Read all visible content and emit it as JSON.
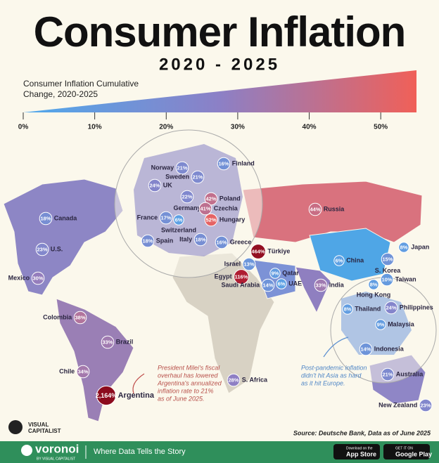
{
  "header": {
    "title": "Consumer Inflation",
    "subtitle": "2020 - 2025"
  },
  "legend": {
    "title_lines": [
      "Consumer Inflation Cumulative",
      "Change, 2020-2025"
    ],
    "lim": [
      0,
      55
    ],
    "ticks": [
      {
        "value": 0,
        "label": "0%"
      },
      {
        "value": 10,
        "label": "10%"
      },
      {
        "value": 20,
        "label": "20%"
      },
      {
        "value": 30,
        "label": "30%"
      },
      {
        "value": 40,
        "label": "40%"
      },
      {
        "value": 50,
        "label": "50%"
      }
    ],
    "colors": [
      "#4fa9ec",
      "#8c80c6",
      "#f06058"
    ]
  },
  "regions": [
    {
      "name": "Finland",
      "value": 16,
      "value_label": "16%"
    },
    {
      "name": "Norway",
      "value": 21,
      "value_label": "21%"
    },
    {
      "name": "Sweden",
      "value": 21,
      "value_label": "21%"
    },
    {
      "name": "UK",
      "value": 24,
      "value_label": "24%"
    },
    {
      "name": "Germany",
      "value": 22,
      "value_label": "22%"
    },
    {
      "name": "Poland",
      "value": 42,
      "value_label": "42%"
    },
    {
      "name": "Czechia",
      "value": 41,
      "value_label": "41%"
    },
    {
      "name": "France",
      "value": 17,
      "value_label": "17%"
    },
    {
      "name": "Hungary",
      "value": 52,
      "value_label": "52%"
    },
    {
      "name": "Switzerland",
      "value": 6,
      "value_label": "6%"
    },
    {
      "name": "Spain",
      "value": 18,
      "value_label": "18%"
    },
    {
      "name": "Italy",
      "value": 18,
      "value_label": "18%"
    },
    {
      "name": "Greece",
      "value": 16,
      "value_label": "16%"
    },
    {
      "name": "Türkiye",
      "value": 464,
      "value_label": "464%"
    },
    {
      "name": "Canada",
      "value": 18,
      "value_label": "18%"
    },
    {
      "name": "U.S.",
      "value": 23,
      "value_label": "23%"
    },
    {
      "name": "Russia",
      "value": 44,
      "value_label": "44%"
    },
    {
      "name": "Japan",
      "value": 8,
      "value_label": "8%"
    },
    {
      "name": "China",
      "value": 6,
      "value_label": "6%"
    },
    {
      "name": "S. Korea",
      "value": 15,
      "value_label": "15%"
    },
    {
      "name": "Taiwan",
      "value": 10,
      "value_label": "10%"
    },
    {
      "name": "Israel",
      "value": 13,
      "value_label": "13%"
    },
    {
      "name": "Qatar",
      "value": 9,
      "value_label": "9%"
    },
    {
      "name": "UAE",
      "value": 6,
      "value_label": "6%"
    },
    {
      "name": "Egypt",
      "value": 116,
      "value_label": "116%"
    },
    {
      "name": "Saudi Arabia",
      "value": 14,
      "value_label": "14%"
    },
    {
      "name": "India",
      "value": 33,
      "value_label": "33%"
    },
    {
      "name": "Hong Kong",
      "value": 8,
      "value_label": "8%"
    },
    {
      "name": "Thailand",
      "value": 8,
      "value_label": "8%"
    },
    {
      "name": "Philippines",
      "value": 24,
      "value_label": "24%"
    },
    {
      "name": "Malaysia",
      "value": 9,
      "value_label": "9%"
    },
    {
      "name": "Indonesia",
      "value": 14,
      "value_label": "14%"
    },
    {
      "name": "Mexico",
      "value": 30,
      "value_label": "30%"
    },
    {
      "name": "Colombia",
      "value": 38,
      "value_label": "38%"
    },
    {
      "name": "Brazil",
      "value": 33,
      "value_label": "33%"
    },
    {
      "name": "Chile",
      "value": 34,
      "value_label": "34%"
    },
    {
      "name": "Argentina",
      "value": 2164,
      "value_label": "2,164%"
    },
    {
      "name": "S. Africa",
      "value": 28,
      "value_label": "28%"
    },
    {
      "name": "Australia",
      "value": 21,
      "value_label": "21%"
    },
    {
      "name": "New Zealand",
      "value": 23,
      "value_label": "23%"
    }
  ],
  "annotations": {
    "argentina": [
      "President Milei's fiscal",
      "overhaul has lowered",
      "Argentina's annualized",
      "inflation rate to 21%",
      "as of June 2025."
    ],
    "asia": [
      "Post-pandemic inflation",
      "didn't hit Asia as hard",
      "as it hit Europe."
    ]
  },
  "source": "Source: Deutsche Bank, Data as of June 2025",
  "brand": [
    "VISUAL",
    "CAPITALIST"
  ],
  "footer": {
    "logo": "voronoi",
    "logo_sub": "BY VISUAL CAPITALIST",
    "tagline": "Where Data Tells the Story",
    "stores": [
      [
        "Download on the",
        "App Store"
      ],
      [
        "GET IT ON",
        "Google Play"
      ]
    ]
  }
}
